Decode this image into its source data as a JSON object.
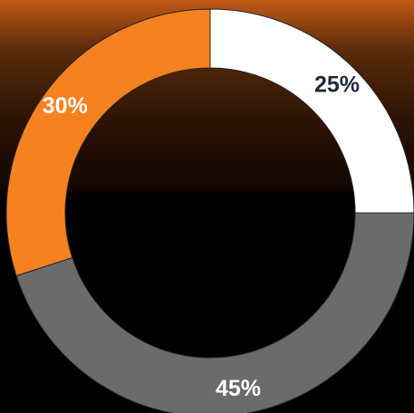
{
  "chart_data": {
    "type": "donut",
    "values": [
      25,
      45,
      30
    ],
    "value_labels": [
      "25%",
      "45%",
      "30%"
    ],
    "colors": [
      "#ffffff",
      "#6b6b6b",
      "#f5821f"
    ]
  }
}
